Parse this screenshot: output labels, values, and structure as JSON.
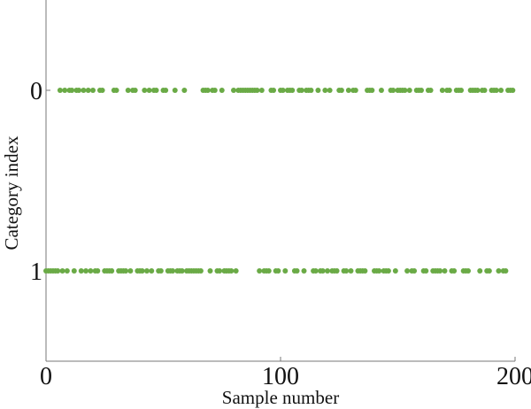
{
  "chart_data": {
    "type": "scatter",
    "x_label": "Sample number",
    "y_label": "Category index",
    "x": [
      0,
      1,
      2,
      3,
      4,
      5,
      6,
      7,
      8,
      9,
      10,
      11,
      12,
      13,
      14,
      15,
      16,
      17,
      18,
      19,
      20,
      21,
      22,
      23,
      24,
      25,
      26,
      27,
      28,
      29,
      30,
      31,
      32,
      33,
      34,
      35,
      36,
      37,
      38,
      39,
      40,
      41,
      42,
      43,
      44,
      45,
      46,
      47,
      48,
      49,
      50,
      51,
      52,
      53,
      54,
      55,
      56,
      57,
      58,
      59,
      60,
      61,
      62,
      63,
      64,
      65,
      66,
      67,
      68,
      69,
      70,
      71,
      72,
      73,
      74,
      75,
      76,
      77,
      78,
      79,
      80,
      81,
      82,
      83,
      84,
      85,
      86,
      87,
      88,
      89,
      90,
      91,
      92,
      93,
      94,
      95,
      96,
      97,
      98,
      99,
      100,
      101,
      102,
      103,
      104,
      105,
      106,
      107,
      108,
      109,
      110,
      111,
      112,
      113,
      114,
      115,
      116,
      117,
      118,
      119,
      120,
      121,
      122,
      123,
      124,
      125,
      126,
      127,
      128,
      129,
      130,
      131,
      132,
      133,
      134,
      135,
      136,
      137,
      138,
      139,
      140,
      141,
      142,
      143,
      144,
      145,
      146,
      147,
      148,
      149,
      150,
      151,
      152,
      153,
      154,
      155,
      156,
      157,
      158,
      159,
      160,
      161,
      162,
      163,
      164,
      165,
      166,
      167,
      168,
      169,
      170,
      171,
      172,
      173,
      174,
      175,
      176,
      177,
      178,
      179,
      180,
      181,
      182,
      183,
      184,
      185,
      186,
      187,
      188,
      189,
      190,
      191,
      192,
      193,
      194,
      195,
      196,
      197,
      198,
      199
    ],
    "values": [
      1,
      1,
      1,
      1,
      1,
      1,
      0,
      1,
      0,
      1,
      0,
      0,
      1,
      0,
      0,
      1,
      0,
      1,
      0,
      1,
      0,
      1,
      1,
      0,
      0,
      1,
      1,
      1,
      1,
      0,
      0,
      1,
      1,
      1,
      1,
      0,
      1,
      0,
      0,
      1,
      1,
      1,
      0,
      1,
      0,
      1,
      0,
      0,
      1,
      1,
      0,
      0,
      1,
      1,
      1,
      0,
      1,
      1,
      1,
      0,
      1,
      1,
      1,
      1,
      1,
      1,
      1,
      0,
      0,
      0,
      1,
      0,
      0,
      1,
      1,
      0,
      1,
      1,
      1,
      1,
      0,
      1,
      0,
      0,
      0,
      0,
      0,
      0,
      0,
      0,
      0,
      1,
      0,
      1,
      1,
      1,
      0,
      0,
      1,
      1,
      0,
      0,
      1,
      0,
      0,
      0,
      1,
      1,
      0,
      0,
      1,
      0,
      0,
      0,
      1,
      1,
      0,
      1,
      1,
      0,
      1,
      0,
      1,
      1,
      1,
      0,
      0,
      1,
      1,
      0,
      1,
      0,
      0,
      1,
      1,
      1,
      1,
      0,
      0,
      0,
      1,
      1,
      1,
      0,
      1,
      1,
      1,
      0,
      0,
      1,
      0,
      0,
      0,
      0,
      1,
      0,
      1,
      1,
      0,
      0,
      0,
      1,
      1,
      0,
      0,
      1,
      1,
      1,
      1,
      0,
      1,
      0,
      0,
      1,
      1,
      0,
      0,
      0,
      1,
      1,
      1,
      0,
      0,
      0,
      0,
      1,
      0,
      0,
      1,
      1,
      0,
      0,
      0,
      1,
      0,
      1,
      1,
      0,
      0,
      0
    ],
    "color": "#6aaa46",
    "xlim": [
      0,
      200
    ],
    "xticks": [
      0,
      100,
      200
    ],
    "ylim": [
      1.5,
      -0.5
    ],
    "yticks": [
      0,
      1
    ]
  }
}
